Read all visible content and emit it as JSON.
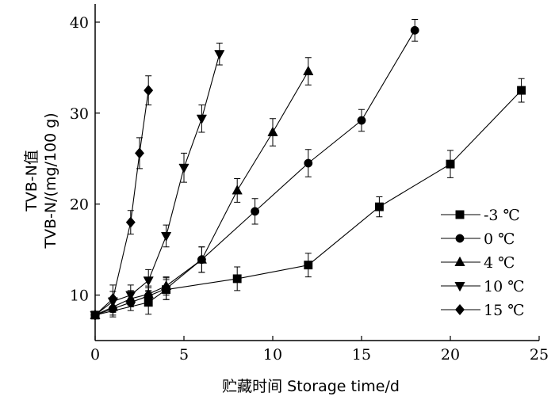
{
  "chart_data": {
    "type": "line",
    "xlabel": "贮藏时间 Storage time/d",
    "ylabel_line1": "TVB-N值",
    "ylabel_line2": "TVB-N/(mg/100 g)",
    "xlim": [
      0,
      25
    ],
    "ylim": [
      5,
      42
    ],
    "x_ticks": [
      0,
      5,
      10,
      15,
      20,
      25
    ],
    "y_ticks": [
      10,
      20,
      30,
      40
    ],
    "grid": false,
    "legend_position": "lower-right",
    "series": [
      {
        "name": "-3 ℃",
        "marker": "square",
        "points": [
          {
            "x": 0,
            "y": 7.8,
            "err": 0.4
          },
          {
            "x": 3,
            "y": 9.2,
            "err": 1.3
          },
          {
            "x": 4,
            "y": 10.6,
            "err": 1.1
          },
          {
            "x": 8,
            "y": 11.8,
            "err": 1.3
          },
          {
            "x": 12,
            "y": 13.3,
            "err": 1.3
          },
          {
            "x": 16,
            "y": 19.7,
            "err": 1.1
          },
          {
            "x": 20,
            "y": 24.4,
            "err": 1.5
          },
          {
            "x": 24,
            "y": 32.5,
            "err": 1.3
          }
        ]
      },
      {
        "name": "0 ℃",
        "marker": "circle",
        "points": [
          {
            "x": 0,
            "y": 7.8,
            "err": 0.4
          },
          {
            "x": 1,
            "y": 8.5,
            "err": 0.9
          },
          {
            "x": 2,
            "y": 9.2,
            "err": 0.9
          },
          {
            "x": 3,
            "y": 9.9,
            "err": 0.9
          },
          {
            "x": 4,
            "y": 10.7,
            "err": 1.2
          },
          {
            "x": 6,
            "y": 13.9,
            "err": 1.4
          },
          {
            "x": 9,
            "y": 19.2,
            "err": 1.4
          },
          {
            "x": 12,
            "y": 24.5,
            "err": 1.5
          },
          {
            "x": 15,
            "y": 29.2,
            "err": 1.2
          },
          {
            "x": 18,
            "y": 39.1,
            "err": 1.2
          }
        ]
      },
      {
        "name": "4 ℃",
        "marker": "triangle-up",
        "points": [
          {
            "x": 0,
            "y": 7.8,
            "err": 0.4
          },
          {
            "x": 1,
            "y": 8.7,
            "err": 0.9
          },
          {
            "x": 2,
            "y": 9.6,
            "err": 0.9
          },
          {
            "x": 3,
            "y": 10.1,
            "err": 0.9
          },
          {
            "x": 4,
            "y": 11.0,
            "err": 1.0
          },
          {
            "x": 6,
            "y": 13.9,
            "err": 1.4
          },
          {
            "x": 8,
            "y": 21.5,
            "err": 1.3
          },
          {
            "x": 10,
            "y": 27.9,
            "err": 1.5
          },
          {
            "x": 12,
            "y": 34.6,
            "err": 1.5
          }
        ]
      },
      {
        "name": "10 ℃",
        "marker": "triangle-down",
        "points": [
          {
            "x": 0,
            "y": 7.8,
            "err": 0.4
          },
          {
            "x": 1,
            "y": 9.3,
            "err": 1.1
          },
          {
            "x": 2,
            "y": 10.0,
            "err": 1.1
          },
          {
            "x": 3,
            "y": 11.6,
            "err": 1.2
          },
          {
            "x": 4,
            "y": 16.5,
            "err": 1.2
          },
          {
            "x": 5,
            "y": 24.0,
            "err": 1.6
          },
          {
            "x": 6,
            "y": 29.4,
            "err": 1.5
          },
          {
            "x": 7,
            "y": 36.5,
            "err": 1.2
          }
        ]
      },
      {
        "name": "15 ℃",
        "marker": "diamond",
        "points": [
          {
            "x": 0,
            "y": 7.8,
            "err": 0.4
          },
          {
            "x": 1,
            "y": 9.6,
            "err": 1.5
          },
          {
            "x": 2,
            "y": 18.0,
            "err": 1.3
          },
          {
            "x": 2.5,
            "y": 25.6,
            "err": 1.7
          },
          {
            "x": 3,
            "y": 32.5,
            "err": 1.6
          }
        ]
      }
    ]
  }
}
